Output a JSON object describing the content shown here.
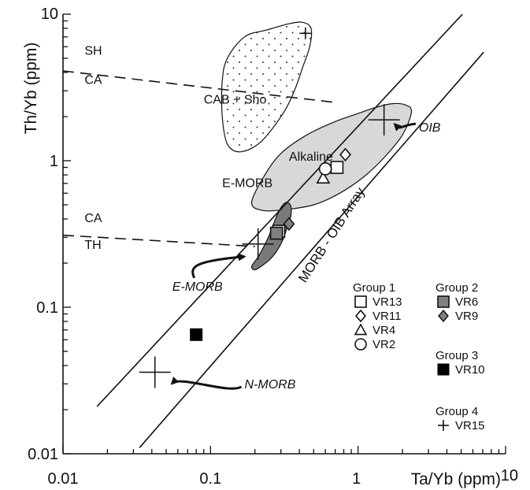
{
  "chart_data": {
    "type": "scatter",
    "scale": "log-log",
    "xlabel": "Ta/Yb (ppm)",
    "ylabel": "Th/Yb (ppm)",
    "xlim": [
      0.01,
      10
    ],
    "ylim": [
      0.01,
      10
    ],
    "x_ticks": [
      {
        "value": 0.01,
        "label": "0.01"
      },
      {
        "value": 0.1,
        "label": "0.1"
      },
      {
        "value": 1,
        "label": "1"
      },
      {
        "value": 10,
        "label": "10"
      }
    ],
    "y_ticks": [
      {
        "value": 0.01,
        "label": "0.01"
      },
      {
        "value": 0.1,
        "label": "0.1"
      },
      {
        "value": 1,
        "label": "1"
      },
      {
        "value": 10,
        "label": "10"
      }
    ],
    "grid": false,
    "legend_position": "bottom-right",
    "regions": [
      {
        "id": "cab-sho",
        "label": "CAB + Sho",
        "fill": "dotted",
        "polygon": [
          [
            0.13,
            5.0
          ],
          [
            0.17,
            7.0
          ],
          [
            0.24,
            7.8
          ],
          [
            0.34,
            8.6
          ],
          [
            0.42,
            8.8
          ],
          [
            0.48,
            8.0
          ],
          [
            0.47,
            6.0
          ],
          [
            0.42,
            4.3
          ],
          [
            0.37,
            3.0
          ],
          [
            0.31,
            2.1
          ],
          [
            0.22,
            1.35
          ],
          [
            0.16,
            1.15
          ],
          [
            0.13,
            1.3
          ],
          [
            0.12,
            2.0
          ],
          [
            0.12,
            3.5
          ]
        ]
      },
      {
        "id": "alkaline",
        "label": "Alkaline",
        "fill": "#d8d8d8",
        "polygon": [
          [
            0.19,
            0.52
          ],
          [
            0.23,
            0.78
          ],
          [
            0.3,
            1.12
          ],
          [
            0.45,
            1.5
          ],
          [
            0.7,
            1.85
          ],
          [
            1.0,
            2.1
          ],
          [
            1.3,
            2.3
          ],
          [
            1.7,
            2.45
          ],
          [
            2.1,
            2.4
          ],
          [
            2.3,
            2.15
          ],
          [
            2.0,
            1.5
          ],
          [
            1.5,
            1.05
          ],
          [
            1.1,
            0.78
          ],
          [
            0.75,
            0.6
          ],
          [
            0.5,
            0.5
          ],
          [
            0.3,
            0.46
          ],
          [
            0.22,
            0.46
          ]
        ]
      },
      {
        "id": "e-morb",
        "label": "E-MORB",
        "fill": "#7a7a7a",
        "polygon": [
          [
            0.19,
            0.19
          ],
          [
            0.21,
            0.22
          ],
          [
            0.23,
            0.26
          ],
          [
            0.25,
            0.31
          ],
          [
            0.27,
            0.38
          ],
          [
            0.29,
            0.45
          ],
          [
            0.31,
            0.5
          ],
          [
            0.33,
            0.52
          ],
          [
            0.35,
            0.49
          ],
          [
            0.35,
            0.42
          ],
          [
            0.33,
            0.35
          ],
          [
            0.31,
            0.29
          ],
          [
            0.28,
            0.24
          ],
          [
            0.25,
            0.21
          ],
          [
            0.22,
            0.19
          ],
          [
            0.2,
            0.18
          ]
        ]
      }
    ],
    "lines": [
      {
        "id": "array-upper",
        "style": "solid",
        "points": [
          [
            0.017,
            0.021
          ],
          [
            5.1,
            10
          ]
        ]
      },
      {
        "id": "array-lower",
        "style": "solid",
        "points": [
          [
            0.033,
            0.011
          ],
          [
            7.1,
            5.5
          ]
        ]
      },
      {
        "id": "sh-ca-divide",
        "style": "dashed",
        "points": [
          [
            0.01,
            4.1
          ],
          [
            0.7,
            2.5
          ]
        ]
      },
      {
        "id": "ca-th-divide",
        "style": "dashed",
        "points": [
          [
            0.01,
            0.31
          ],
          [
            0.2,
            0.26
          ]
        ]
      }
    ],
    "region_labels": [
      {
        "text": "SH",
        "x": 0.014,
        "y": 5.3
      },
      {
        "text": "CA",
        "x": 0.014,
        "y": 3.35
      },
      {
        "text": "CAB + Sho",
        "x": 0.09,
        "y": 2.45
      },
      {
        "text": "Alkaline",
        "x": 0.34,
        "y": 1.0
      },
      {
        "text": "E-MORB",
        "x": 0.12,
        "y": 0.66
      },
      {
        "text": "CA",
        "x": 0.014,
        "y": 0.38
      },
      {
        "text": "TH",
        "x": 0.014,
        "y": 0.25
      }
    ],
    "array_label": {
      "text": "MORB - OIB Array",
      "x": 0.7,
      "y": 0.3,
      "angle": -57
    },
    "reference_points": [
      {
        "label": "OIB",
        "x": 1.5,
        "y": 1.9
      },
      {
        "label": "E-MORB",
        "x": 0.21,
        "y": 0.27
      },
      {
        "label": "N-MORB",
        "x": 0.042,
        "y": 0.036
      }
    ],
    "reference_label_positions": [
      {
        "label": "OIB",
        "x": 2.4,
        "y": 1.7
      },
      {
        "label": "E-MORB",
        "x": 0.055,
        "y": 0.13
      },
      {
        "label": "N-MORB",
        "x": 0.17,
        "y": 0.028
      }
    ],
    "series": [
      {
        "name": "VR13",
        "group": "Group 1",
        "marker": "open-square",
        "points": [
          [
            0.72,
            0.9
          ],
          [
            0.29,
            0.33
          ]
        ]
      },
      {
        "name": "VR11",
        "group": "Group 1",
        "marker": "open-diamond",
        "points": [
          [
            0.82,
            1.1
          ],
          [
            0.34,
            0.37
          ]
        ]
      },
      {
        "name": "VR4",
        "group": "Group 1",
        "marker": "open-triangle",
        "points": [
          [
            0.58,
            0.76
          ]
        ]
      },
      {
        "name": "VR2",
        "group": "Group 1",
        "marker": "open-circle",
        "points": [
          [
            0.6,
            0.88
          ]
        ]
      },
      {
        "name": "VR6",
        "group": "Group 2",
        "marker": "filled-gray-square",
        "points": [
          [
            0.28,
            0.32
          ]
        ]
      },
      {
        "name": "VR9",
        "group": "Group 2",
        "marker": "filled-gray-diamond",
        "points": [
          [
            0.34,
            0.37
          ]
        ]
      },
      {
        "name": "VR10",
        "group": "Group 3",
        "marker": "filled-black-square",
        "points": [
          [
            0.08,
            0.065
          ]
        ]
      },
      {
        "name": "VR15",
        "group": "Group 4",
        "marker": "plus",
        "points": [
          [
            0.44,
            7.4
          ]
        ]
      }
    ],
    "legend": {
      "groups": [
        {
          "title": "Group 1",
          "items": [
            "VR13",
            "VR11",
            "VR4",
            "VR2"
          ]
        },
        {
          "title": "Group 2",
          "items": [
            "VR6",
            "VR9"
          ]
        },
        {
          "title": "Group 3",
          "items": [
            "VR10"
          ]
        },
        {
          "title": "Group 4",
          "items": [
            "VR15"
          ]
        }
      ]
    },
    "colors": {
      "axis": "#111111",
      "alkaline_fill": "#d8d8d8",
      "emorb_fill": "#7a7a7a",
      "group2_marker": "#808080",
      "group3_marker": "#000000"
    }
  }
}
